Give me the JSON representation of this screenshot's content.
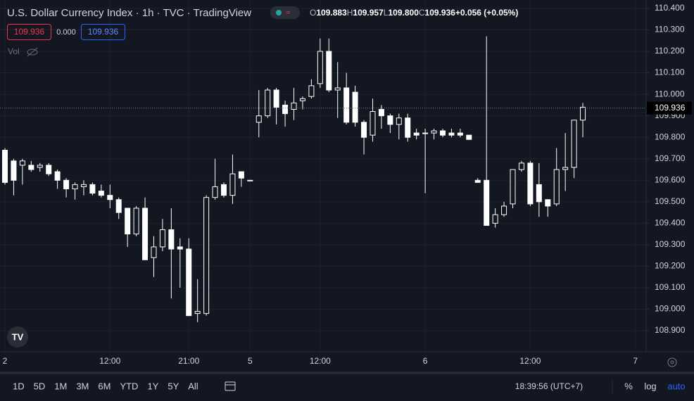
{
  "header": {
    "title": "U.S. Dollar Currency Index · 1h · TVC · TradingView",
    "legend": [
      {
        "label": "O",
        "value": "109.883"
      },
      {
        "label": "H",
        "value": "109.957"
      },
      {
        "label": "L",
        "value": "109.800"
      },
      {
        "label": "C",
        "value": "109.936"
      },
      {
        "label": "",
        "value": "+0.056 (+0.05%)"
      }
    ],
    "bid": "109.936",
    "spread": "0.000",
    "ask": "109.936",
    "volume": "Vol"
  },
  "chart_data": {
    "type": "candlestick",
    "categories": [
      "2",
      null,
      null,
      null,
      null,
      null,
      null,
      null,
      null,
      null,
      null,
      null,
      "12:00",
      null,
      null,
      null,
      null,
      null,
      null,
      null,
      null,
      "21:00",
      null,
      null,
      null,
      null,
      null,
      null,
      "5",
      null,
      null,
      null,
      null,
      null,
      null,
      null,
      "12:00",
      null,
      null,
      null,
      null,
      null,
      null,
      null,
      null,
      null,
      null,
      null,
      "6",
      null,
      null,
      null,
      null,
      null,
      null,
      null,
      null,
      null,
      null,
      null,
      "12:00",
      null,
      null,
      null,
      null,
      null,
      null,
      null,
      null,
      null,
      null,
      null,
      "7"
    ],
    "open": [
      109.74,
      109.69,
      109.67,
      109.67,
      109.66,
      109.67,
      109.64,
      109.6,
      109.56,
      109.57,
      109.58,
      109.55,
      109.53,
      109.51,
      109.47,
      109.35,
      109.47,
      109.24,
      109.29,
      109.37,
      109.29,
      109.28,
      108.98,
      108.98,
      109.52,
      109.58,
      109.53,
      109.64,
      109.6,
      109.87,
      109.9,
      110.02,
      109.95,
      109.93,
      109.97,
      109.99,
      110.05,
      110.2,
      110.02,
      110.03,
      110.01,
      109.87,
      109.81,
      109.93,
      109.9,
      109.86,
      109.89,
      109.82,
      109.82,
      109.82,
      109.83,
      109.82,
      109.82,
      109.81,
      109.6,
      109.6,
      109.4,
      109.44,
      109.49,
      109.65,
      109.68,
      109.58,
      109.51,
      109.49,
      109.65,
      109.66,
      109.88,
      null,
      null,
      null,
      null,
      null,
      null
    ],
    "high": [
      109.75,
      109.7,
      109.7,
      109.69,
      109.68,
      109.68,
      109.65,
      109.61,
      109.59,
      109.6,
      109.59,
      109.58,
      109.58,
      109.52,
      109.47,
      109.48,
      109.52,
      109.34,
      109.42,
      109.47,
      109.33,
      109.33,
      109.14,
      109.53,
      109.7,
      109.59,
      109.72,
      109.64,
      109.6,
      110.02,
      110.03,
      110.03,
      109.97,
      110.03,
      109.99,
      110.07,
      110.26,
      110.26,
      110.15,
      110.1,
      110.04,
      109.88,
      109.98,
      109.95,
      109.91,
      109.91,
      109.91,
      109.84,
      109.84,
      109.84,
      109.84,
      109.84,
      109.84,
      109.81,
      109.61,
      110.27,
      109.47,
      109.5,
      109.65,
      109.69,
      109.69,
      109.68,
      109.51,
      109.75,
      109.82,
      109.88,
      109.96,
      null,
      null,
      null,
      null,
      null,
      null
    ],
    "low": [
      109.58,
      109.53,
      109.58,
      109.64,
      109.64,
      109.62,
      109.56,
      109.52,
      109.51,
      109.53,
      109.53,
      109.52,
      109.47,
      109.42,
      109.29,
      109.34,
      109.23,
      109.15,
      109.27,
      109.05,
      109.1,
      108.97,
      108.94,
      108.97,
      109.51,
      109.52,
      109.49,
      109.57,
      109.6,
      109.8,
      109.89,
      109.86,
      109.85,
      109.88,
      109.93,
      109.98,
      110.03,
      110.01,
      109.89,
      109.86,
      109.85,
      109.72,
      109.78,
      109.84,
      109.82,
      109.79,
      109.78,
      109.79,
      109.54,
      109.79,
      109.8,
      109.8,
      109.8,
      109.79,
      109.59,
      109.39,
      109.38,
      109.43,
      109.47,
      109.64,
      109.48,
      109.43,
      109.43,
      109.48,
      109.55,
      109.61,
      109.8,
      null,
      null,
      null,
      null,
      null,
      null
    ],
    "close": [
      109.59,
      109.6,
      109.69,
      109.65,
      109.67,
      109.63,
      109.6,
      109.56,
      109.58,
      109.58,
      109.54,
      109.53,
      109.51,
      109.45,
      109.35,
      109.47,
      109.23,
      109.29,
      109.37,
      109.28,
      109.28,
      108.97,
      108.99,
      109.52,
      109.57,
      109.53,
      109.63,
      109.61,
      109.6,
      109.9,
      110.02,
      109.94,
      109.91,
      109.96,
      109.98,
      110.04,
      110.2,
      110.02,
      110.03,
      109.87,
      109.87,
      109.8,
      109.92,
      109.9,
      109.86,
      109.89,
      109.8,
      109.81,
      109.82,
      109.83,
      109.81,
      109.81,
      109.81,
      109.79,
      109.59,
      109.39,
      109.44,
      109.48,
      109.65,
      109.68,
      109.49,
      109.5,
      109.48,
      109.65,
      109.66,
      109.88,
      109.94,
      null,
      null,
      null,
      null,
      null,
      null
    ],
    "up_color": "#131722",
    "down_color": "#ffffff",
    "wick_color": "#ffffff",
    "ylim": [
      108.802,
      110.439
    ],
    "yticks": [
      {
        "value": 110.4,
        "label": "110.400"
      },
      {
        "value": 110.3,
        "label": "110.300"
      },
      {
        "value": 110.2,
        "label": "110.200"
      },
      {
        "value": 110.1,
        "label": "110.100"
      },
      {
        "value": 110.0,
        "label": "110.000"
      },
      {
        "value": 109.9,
        "label": "109.900"
      },
      {
        "value": 109.8,
        "label": "109.800"
      },
      {
        "value": 109.7,
        "label": "109.700"
      },
      {
        "value": 109.6,
        "label": "109.600"
      },
      {
        "value": 109.5,
        "label": "109.500"
      },
      {
        "value": 109.4,
        "label": "109.400"
      },
      {
        "value": 109.3,
        "label": "109.300"
      },
      {
        "value": 109.2,
        "label": "109.200"
      },
      {
        "value": 109.1,
        "label": "109.100"
      },
      {
        "value": 109.0,
        "label": "109.000"
      },
      {
        "value": 108.9,
        "label": "108.900"
      }
    ],
    "last_price": 109.936,
    "grid": true
  },
  "toolbar": {
    "ranges": [
      "1D",
      "5D",
      "1M",
      "3M",
      "6M",
      "YTD",
      "1Y",
      "5Y",
      "All"
    ],
    "clock": "18:39:56 (UTC+7)",
    "percent": "%",
    "log": "log",
    "auto": "auto"
  }
}
